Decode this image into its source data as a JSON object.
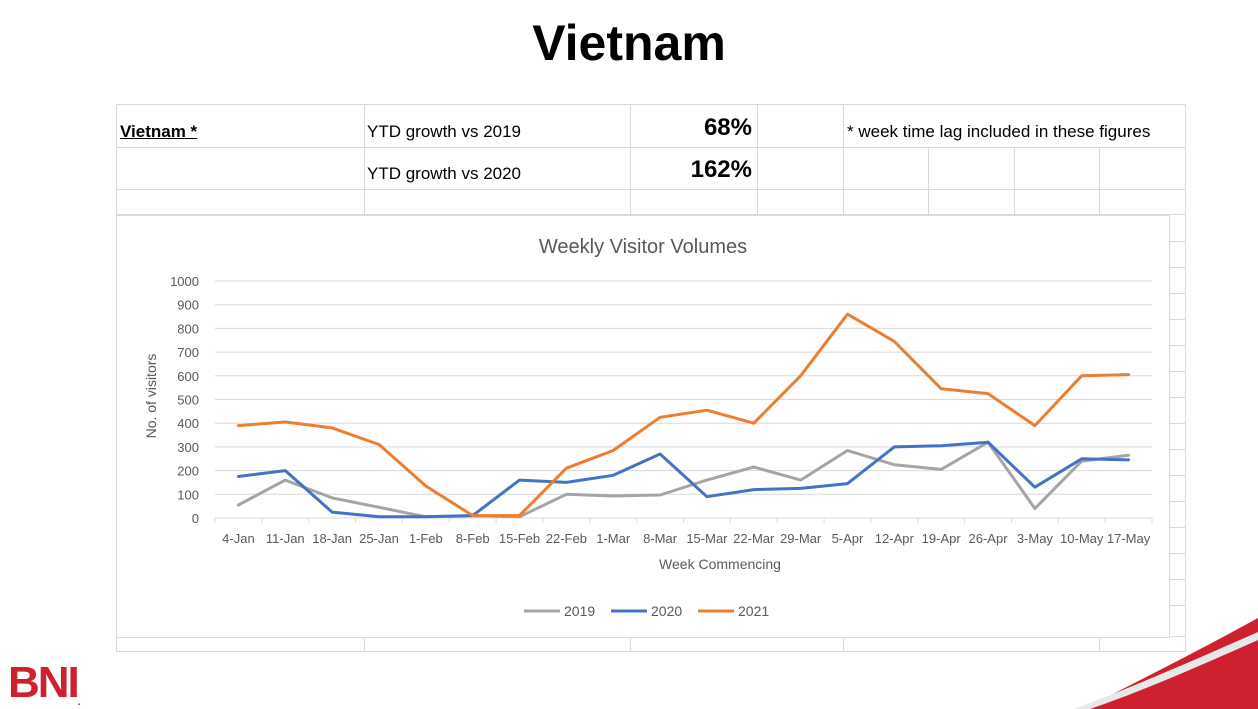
{
  "title": "Vietnam",
  "table": {
    "country_label": "Vietnam *",
    "row1_label": "YTD growth vs 2019",
    "row1_value": "68%",
    "row2_label": "YTD growth vs 2020",
    "row2_value": "162%",
    "note": "* week time lag included in these figures"
  },
  "logo": {
    "text": "BNI",
    "mark": "."
  },
  "colors": {
    "accent": "#cf2030",
    "s2019": "#a5a5a5",
    "s2020": "#4472c4",
    "s2021": "#ed7d31"
  },
  "chart_data": {
    "type": "line",
    "title": "Weekly Visitor Volumes",
    "xlabel": "Week Commencing",
    "ylabel": "No. of visitors",
    "ylim": [
      0,
      1000
    ],
    "yticks": [
      0,
      100,
      200,
      300,
      400,
      500,
      600,
      700,
      800,
      900,
      1000
    ],
    "grid": true,
    "legend_position": "bottom",
    "categories": [
      "4-Jan",
      "11-Jan",
      "18-Jan",
      "25-Jan",
      "1-Feb",
      "8-Feb",
      "15-Feb",
      "22-Feb",
      "1-Mar",
      "8-Mar",
      "15-Mar",
      "22-Mar",
      "29-Mar",
      "5-Apr",
      "12-Apr",
      "19-Apr",
      "26-Apr",
      "3-May",
      "10-May",
      "17-May"
    ],
    "series": [
      {
        "name": "2019",
        "color": "#a5a5a5",
        "values": [
          55,
          160,
          85,
          45,
          5,
          10,
          5,
          100,
          93,
          97,
          160,
          215,
          160,
          285,
          225,
          205,
          320,
          40,
          240,
          265
        ]
      },
      {
        "name": "2020",
        "color": "#4472c4",
        "values": [
          175,
          200,
          25,
          5,
          5,
          10,
          160,
          150,
          180,
          270,
          90,
          120,
          125,
          145,
          300,
          305,
          320,
          130,
          250,
          245
        ]
      },
      {
        "name": "2021",
        "color": "#ed7d31",
        "values": [
          390,
          405,
          380,
          310,
          135,
          10,
          10,
          210,
          285,
          425,
          455,
          400,
          600,
          860,
          745,
          545,
          525,
          390,
          600,
          605
        ]
      }
    ]
  }
}
